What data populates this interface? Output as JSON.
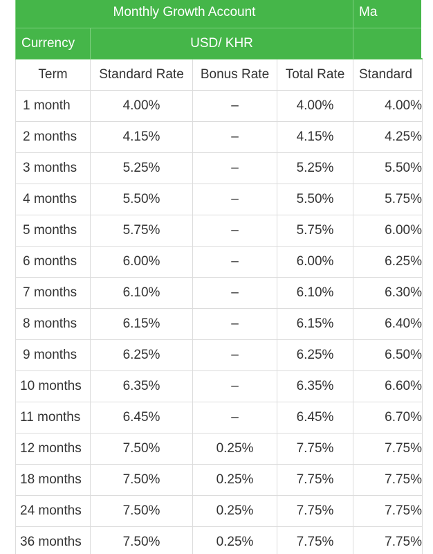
{
  "title_primary": "Monthly Growth Account",
  "title_secondary": "Ma",
  "currency_label": "Currency",
  "currency_value": "USD/ KHR",
  "columns": {
    "term": "Term",
    "standard": "Standard Rate",
    "bonus": "Bonus Rate",
    "total": "Total Rate",
    "standard2": "Standard"
  },
  "rows": [
    {
      "term": "1 month",
      "standard": "4.00%",
      "bonus": "–",
      "total": "4.00%",
      "standard2": "4.00%"
    },
    {
      "term": "2 months",
      "standard": "4.15%",
      "bonus": "–",
      "total": "4.15%",
      "standard2": "4.25%"
    },
    {
      "term": "3 months",
      "standard": "5.25%",
      "bonus": "–",
      "total": "5.25%",
      "standard2": "5.50%"
    },
    {
      "term": "4 months",
      "standard": "5.50%",
      "bonus": "–",
      "total": "5.50%",
      "standard2": "5.75%"
    },
    {
      "term": "5 months",
      "standard": "5.75%",
      "bonus": "–",
      "total": "5.75%",
      "standard2": "6.00%"
    },
    {
      "term": "6 months",
      "standard": "6.00%",
      "bonus": "–",
      "total": "6.00%",
      "standard2": "6.25%"
    },
    {
      "term": "7 months",
      "standard": "6.10%",
      "bonus": "–",
      "total": "6.10%",
      "standard2": "6.30%"
    },
    {
      "term": "8 months",
      "standard": "6.15%",
      "bonus": "–",
      "total": "6.15%",
      "standard2": "6.40%"
    },
    {
      "term": "9 months",
      "standard": "6.25%",
      "bonus": "–",
      "total": "6.25%",
      "standard2": "6.50%"
    },
    {
      "term": "10 months",
      "standard": "6.35%",
      "bonus": "–",
      "total": "6.35%",
      "standard2": "6.60%"
    },
    {
      "term": "11 months",
      "standard": "6.45%",
      "bonus": "–",
      "total": "6.45%",
      "standard2": "6.70%"
    },
    {
      "term": "12 months",
      "standard": "7.50%",
      "bonus": "0.25%",
      "total": "7.75%",
      "standard2": "7.75%"
    },
    {
      "term": "18 months",
      "standard": "7.50%",
      "bonus": "0.25%",
      "total": "7.75%",
      "standard2": "7.75%"
    },
    {
      "term": "24 months",
      "standard": "7.50%",
      "bonus": "0.25%",
      "total": "7.75%",
      "standard2": "7.75%"
    },
    {
      "term": "36 months",
      "standard": "7.50%",
      "bonus": "0.25%",
      "total": "7.75%",
      "standard2": "7.75%"
    }
  ],
  "colors": {
    "header_green": "#45b649",
    "header_text": "#ffffff",
    "body_text": "#333333",
    "grid": "#dcdcdc"
  }
}
